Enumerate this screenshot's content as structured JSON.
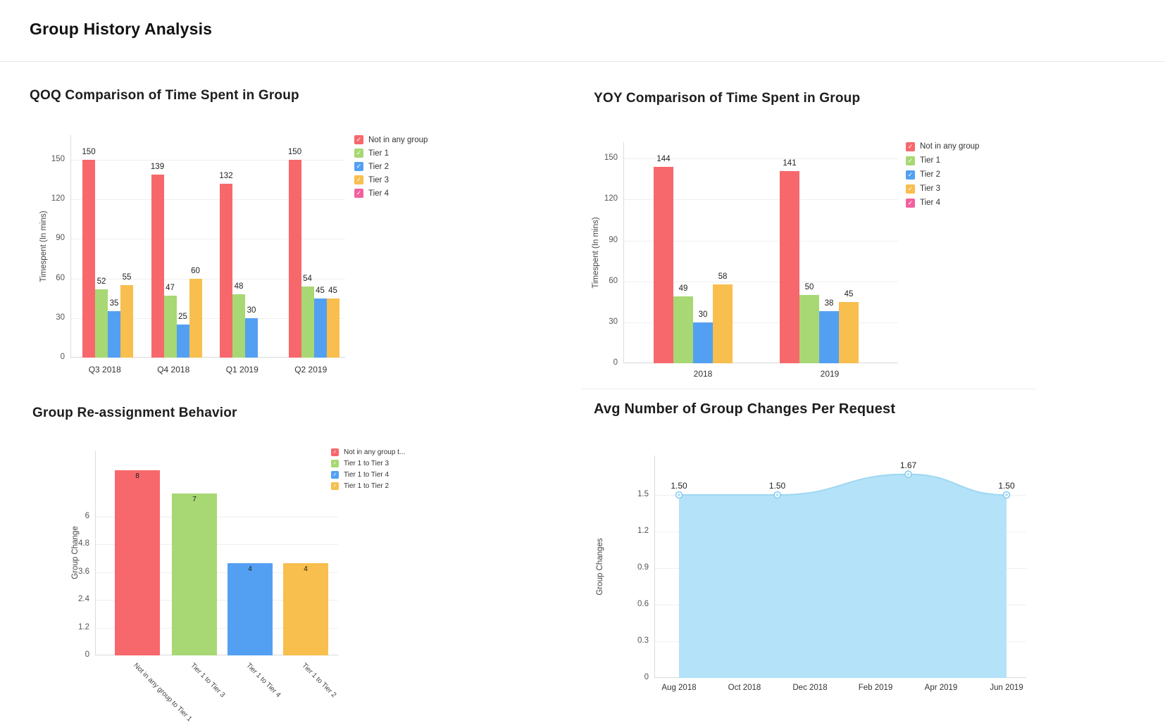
{
  "page": {
    "title": "Group History Analysis"
  },
  "chart_data": [
    {
      "id": "qoq",
      "type": "bar",
      "title": "QOQ Comparison of Time Spent in Group",
      "ylabel": "Timespent (In mins)",
      "categories": [
        "Q3 2018",
        "Q4 2018",
        "Q1 2019",
        "Q2 2019"
      ],
      "series": [
        {
          "name": "Not in any group",
          "color": "#f7686c",
          "values": [
            150,
            139,
            132,
            150
          ]
        },
        {
          "name": "Tier 1",
          "color": "#a7d873",
          "values": [
            52,
            47,
            48,
            54
          ]
        },
        {
          "name": "Tier 2",
          "color": "#53a0f3",
          "values": [
            35,
            25,
            30,
            45
          ]
        },
        {
          "name": "Tier 3",
          "color": "#f8be4e",
          "values": [
            55,
            60,
            0,
            45
          ]
        },
        {
          "name": "Tier 4",
          "color": "#f2619e",
          "values": [
            0,
            0,
            0,
            0
          ]
        }
      ],
      "yticks": [
        0,
        30,
        60,
        90,
        120,
        150
      ],
      "ymax": 168.7,
      "legend_position": "right",
      "grid": true
    },
    {
      "id": "yoy",
      "type": "bar",
      "title": "YOY Comparison of Time Spent in Group",
      "ylabel": "Timespent (In mins)",
      "categories": [
        "2018",
        "2019"
      ],
      "series": [
        {
          "name": "Not in any group",
          "color": "#f7686c",
          "values": [
            144,
            141
          ]
        },
        {
          "name": "Tier 1",
          "color": "#a7d873",
          "values": [
            49,
            50
          ]
        },
        {
          "name": "Tier 2",
          "color": "#53a0f3",
          "values": [
            30,
            38
          ]
        },
        {
          "name": "Tier 3",
          "color": "#f8be4e",
          "values": [
            58,
            45
          ]
        },
        {
          "name": "Tier 4",
          "color": "#f2619e",
          "values": [
            0,
            0
          ]
        }
      ],
      "yticks": [
        0,
        30,
        60,
        90,
        120,
        150
      ],
      "ymax": 162,
      "legend_position": "right",
      "grid": true
    },
    {
      "id": "reassign",
      "type": "bar",
      "title": "Group Re-assignment Behavior",
      "ylabel": "Group Change",
      "categories": [
        "Not in any group to Tier 1",
        "Tier 1 to Tier 3",
        "Tier 1 to Tier 4",
        "Tier 1 to Tier 2"
      ],
      "values": [
        8,
        7,
        4,
        4
      ],
      "colors": [
        "#f7686c",
        "#a7d873",
        "#53a0f3",
        "#f8be4e"
      ],
      "legend_labels": [
        "Not in any group t...",
        "Tier 1 to Tier 3",
        "Tier 1 to Tier 4",
        "Tier 1 to Tier 2"
      ],
      "yticks": [
        0,
        1.2,
        2.4,
        3.6,
        4.8,
        6
      ],
      "ymax": 8.86,
      "legend_position": "right",
      "grid": true,
      "x_labels_rotated": true
    },
    {
      "id": "avg",
      "type": "area",
      "title": "Avg Number of Group Changes Per Request",
      "ylabel": "Group Changes",
      "x_tick_labels": [
        "Aug 2018",
        "Oct 2018",
        "Dec 2018",
        "Feb 2019",
        "Apr 2019",
        "Jun 2019"
      ],
      "points": [
        {
          "x_tick": 0,
          "value": 1.5,
          "label": "1.50"
        },
        {
          "x_tick": 1.5,
          "value": 1.5,
          "label": "1.50"
        },
        {
          "x_tick": 3.5,
          "value": 1.67,
          "label": "1.67"
        },
        {
          "x_tick": 5,
          "value": 1.5,
          "label": "1.50"
        }
      ],
      "yticks": [
        0,
        0.3,
        0.6,
        0.9,
        1.2,
        1.5
      ],
      "ymax": 1.82,
      "fill_color": "#b3e2f9",
      "line_color": "#9fd7f1",
      "marker_ring_color": "#7fc9ee",
      "marker_dot_color": "#b3e2f9",
      "grid": true
    }
  ]
}
